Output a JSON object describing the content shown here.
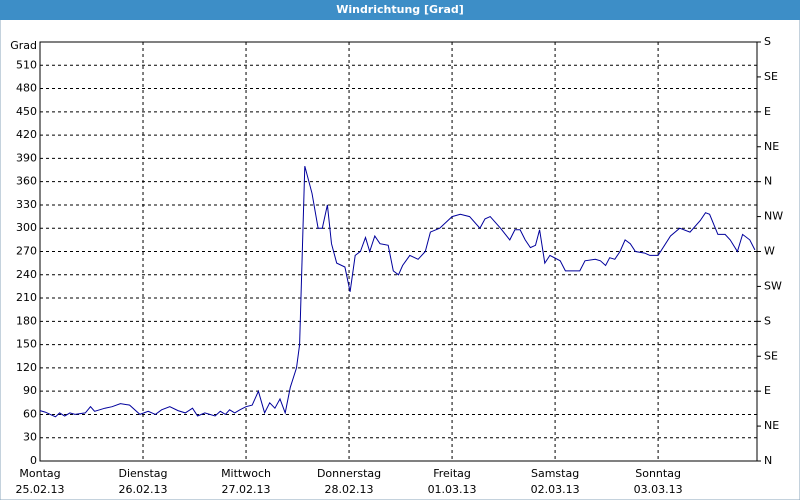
{
  "chart_data": {
    "type": "line",
    "title": "Windrichtung [Grad]",
    "y_label": "Grad",
    "x": [
      0,
      0.05,
      0.1,
      0.15,
      0.19,
      0.24,
      0.29,
      0.34,
      0.44,
      0.49,
      0.53,
      0.63,
      0.7,
      0.78,
      0.87,
      0.97,
      1.05,
      1.12,
      1.18,
      1.26,
      1.34,
      1.41,
      1.48,
      1.53,
      1.6,
      1.7,
      1.75,
      1.8,
      1.84,
      1.89,
      1.94,
      2,
      2.06,
      2.12,
      2.18,
      2.23,
      2.28,
      2.33,
      2.38,
      2.43,
      2.49,
      2.52,
      2.57,
      2.64,
      2.7,
      2.74,
      2.79,
      2.83,
      2.88,
      2.96,
      3.01,
      3.06,
      3.11,
      3.16,
      3.2,
      3.25,
      3.3,
      3.38,
      3.43,
      3.48,
      3.52,
      3.59,
      3.67,
      3.74,
      3.79,
      3.88,
      4,
      4.08,
      4.17,
      4.27,
      4.32,
      4.37,
      4.47,
      4.56,
      4.61,
      4.66,
      4.71,
      4.76,
      4.81,
      4.85,
      4.9,
      4.95,
      5.05,
      5.1,
      5.19,
      5.24,
      5.29,
      5.39,
      5.44,
      5.49,
      5.53,
      5.58,
      5.63,
      5.68,
      5.73,
      5.78,
      5.87,
      5.92,
      6,
      6.12,
      6.21,
      6.31,
      6.41,
      6.46,
      6.5,
      6.58,
      6.65,
      6.7,
      6.77,
      6.82,
      6.89,
      6.94
    ],
    "series": [
      {
        "name": "Windrichtung",
        "color": "#00009c",
        "values": [
          65,
          63,
          60,
          57,
          62,
          58,
          62,
          60,
          62,
          70,
          64,
          68,
          70,
          74,
          72,
          60,
          64,
          60,
          66,
          70,
          65,
          62,
          68,
          58,
          62,
          58,
          64,
          60,
          66,
          62,
          66,
          70,
          72,
          90,
          62,
          75,
          68,
          80,
          62,
          95,
          120,
          150,
          380,
          345,
          300,
          300,
          330,
          280,
          255,
          250,
          218,
          265,
          270,
          288,
          270,
          290,
          280,
          278,
          245,
          240,
          252,
          265,
          260,
          270,
          295,
          300,
          315,
          318,
          315,
          300,
          312,
          315,
          300,
          285,
          298,
          298,
          285,
          275,
          278,
          298,
          255,
          265,
          258,
          245,
          245,
          245,
          258,
          260,
          258,
          252,
          262,
          260,
          270,
          285,
          280,
          270,
          268,
          265,
          265,
          290,
          300,
          295,
          310,
          320,
          318,
          292,
          292,
          285,
          270,
          292,
          285,
          272
        ]
      }
    ],
    "xlim": [
      0,
      6.96
    ],
    "xticks": [
      {
        "value": 0,
        "label": "Montag",
        "date": "25.02.13"
      },
      {
        "value": 1,
        "label": "Dienstag",
        "date": "26.02.13"
      },
      {
        "value": 2,
        "label": "Mittwoch",
        "date": "27.02.13"
      },
      {
        "value": 3,
        "label": "Donnerstag",
        "date": "28.02.13"
      },
      {
        "value": 4,
        "label": "Freitag",
        "date": "01.03.13"
      },
      {
        "value": 5,
        "label": "Samstag",
        "date": "02.03.13"
      },
      {
        "value": 6,
        "label": "Sonntag",
        "date": "03.03.13"
      }
    ],
    "ylim": [
      0,
      540
    ],
    "yticks": [
      0,
      30,
      60,
      90,
      120,
      150,
      180,
      210,
      240,
      270,
      300,
      330,
      360,
      390,
      420,
      450,
      480,
      510
    ],
    "y2lim": [
      0,
      540
    ],
    "y2ticks": [
      {
        "value": 0,
        "label": "N"
      },
      {
        "value": 45,
        "label": "NE"
      },
      {
        "value": 90,
        "label": "E"
      },
      {
        "value": 135,
        "label": "SE"
      },
      {
        "value": 180,
        "label": "S"
      },
      {
        "value": 225,
        "label": "SW"
      },
      {
        "value": 270,
        "label": "W"
      },
      {
        "value": 315,
        "label": "NW"
      },
      {
        "value": 360,
        "label": "N"
      },
      {
        "value": 405,
        "label": "NE"
      },
      {
        "value": 450,
        "label": "E"
      },
      {
        "value": 495,
        "label": "SE"
      },
      {
        "value": 540,
        "label": "S"
      }
    ],
    "grid": true
  }
}
